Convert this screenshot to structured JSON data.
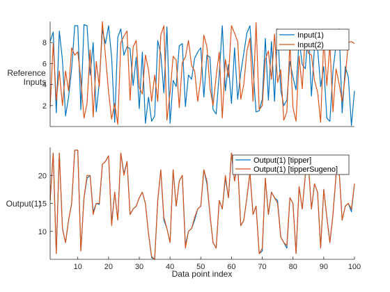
{
  "chart_data": [
    {
      "type": "line",
      "ylabel": [
        "Reference",
        "Inputs"
      ],
      "xlim": [
        1,
        100
      ],
      "ylim": [
        0,
        10
      ],
      "yticks": [
        2,
        4,
        6,
        8
      ],
      "xticks": [],
      "grid": false,
      "legend_position": "top-right",
      "x": [
        1,
        2,
        3,
        4,
        5,
        6,
        7,
        8,
        9,
        10,
        11,
        12,
        13,
        14,
        15,
        16,
        17,
        18,
        19,
        20,
        21,
        22,
        23,
        24,
        25,
        26,
        27,
        28,
        29,
        30,
        31,
        32,
        33,
        34,
        35,
        36,
        37,
        38,
        39,
        40,
        41,
        42,
        43,
        44,
        45,
        46,
        47,
        48,
        49,
        50,
        51,
        52,
        53,
        54,
        55,
        56,
        57,
        58,
        59,
        60,
        61,
        62,
        63,
        64,
        65,
        66,
        67,
        68,
        69,
        70,
        71,
        72,
        73,
        74,
        75,
        76,
        77,
        78,
        79,
        80,
        81,
        82,
        83,
        84,
        85,
        86,
        87,
        88,
        89,
        90,
        91,
        92,
        93,
        94,
        95,
        96,
        97,
        98,
        99,
        100
      ],
      "series": [
        {
          "name": "Input(1)",
          "color": "#0072BD",
          "values": [
            8.1,
            9.0,
            1.3,
            9.1,
            6.3,
            1.0,
            2.8,
            5.5,
            9.6,
            9.6,
            1.6,
            9.7,
            9.6,
            4.9,
            8.0,
            1.4,
            4.2,
            9.2,
            7.9,
            9.6,
            6.6,
            0.4,
            8.5,
            9.3,
            6.8,
            7.6,
            7.4,
            3.9,
            6.6,
            1.7,
            7.1,
            0.3,
            2.8,
            0.5,
            1.0,
            8.2,
            6.9,
            3.2,
            9.5,
            0.3,
            4.4,
            3.8,
            7.7,
            7.9,
            1.9,
            4.9,
            4.5,
            6.5,
            7.1,
            7.5,
            2.8,
            6.8,
            6.6,
            1.6,
            1.2,
            5.0,
            9.6,
            3.4,
            5.9,
            2.2,
            7.5,
            2.6,
            5.1,
            7.0,
            8.9,
            9.6,
            5.5,
            1.4,
            1.5,
            2.6,
            8.4,
            2.5,
            8.1,
            2.4,
            9.3,
            3.5,
            2.0,
            2.5,
            6.2,
            4.7,
            3.5,
            8.3,
            5.9,
            5.5,
            9.2,
            2.9,
            7.6,
            7.5,
            3.8,
            5.7,
            0.8,
            0.5,
            5.3,
            7.8,
            9.3,
            1.3,
            5.7,
            4.7,
            0.1,
            3.4
          ]
        },
        {
          "name": "Input(2)",
          "color": "#D95319",
          "values": [
            1.8,
            7.9,
            2.5,
            5.3,
            2.0,
            5.3,
            3.4,
            7.5,
            6.8,
            7.1,
            4.5,
            0.8,
            2.2,
            7.3,
            0.9,
            6.2,
            3.8,
            10.0,
            6.7,
            3.3,
            0.7,
            2.2,
            0.2,
            8.0,
            8.6,
            9.1,
            2.5,
            7.6,
            8.2,
            3.7,
            3.1,
            6.8,
            5.4,
            2.4,
            4.9,
            2.4,
            8.7,
            9.6,
            0.6,
            3.2,
            6.7,
            6.3,
            1.8,
            6.1,
            6.6,
            8.2,
            5.8,
            5.3,
            2.4,
            4.5,
            8.7,
            7.6,
            3.7,
            2.0,
            4.8,
            7.1,
            0.8,
            6.4,
            4.7,
            9.6,
            8.9,
            8.1,
            2.6,
            4.0,
            7.2,
            8.4,
            2.4,
            9.9,
            1.6,
            2.0,
            6.4,
            7.2,
            4.5,
            8.8,
            4.2,
            5.4,
            0.6,
            1.4,
            7.9,
            1.8,
            0.5,
            6.7,
            3.6,
            9.0,
            7.0,
            6.8,
            4.4,
            3.3,
            0.4,
            8.3,
            3.9,
            7.8,
            1.4,
            5.5,
            4.1,
            2.4,
            4.8,
            8.0,
            8.1,
            7.9
          ]
        }
      ]
    },
    {
      "type": "line",
      "xlabel": "Data point index",
      "ylabel": "Output(1)",
      "xlim": [
        1,
        100
      ],
      "ylim": [
        5,
        25
      ],
      "yticks": [
        10,
        15,
        20
      ],
      "xticks": [
        10,
        20,
        30,
        40,
        50,
        60,
        70,
        80,
        90,
        100
      ],
      "grid": false,
      "legend_position": "top-right",
      "x": [
        1,
        2,
        3,
        4,
        5,
        6,
        7,
        8,
        9,
        10,
        11,
        12,
        13,
        14,
        15,
        16,
        17,
        18,
        19,
        20,
        21,
        22,
        23,
        24,
        25,
        26,
        27,
        28,
        29,
        30,
        31,
        32,
        33,
        34,
        35,
        36,
        37,
        38,
        39,
        40,
        41,
        42,
        43,
        44,
        45,
        46,
        47,
        48,
        49,
        50,
        51,
        52,
        53,
        54,
        55,
        56,
        57,
        58,
        59,
        60,
        61,
        62,
        63,
        64,
        65,
        66,
        67,
        68,
        69,
        70,
        71,
        72,
        73,
        74,
        75,
        76,
        77,
        78,
        79,
        80,
        81,
        82,
        83,
        84,
        85,
        86,
        87,
        88,
        89,
        90,
        91,
        92,
        93,
        94,
        95,
        96,
        97,
        98,
        99,
        100
      ],
      "series": [
        {
          "name": "Output(1) [tipper]",
          "color": "#0072BD",
          "values": [
            15.5,
            24.0,
            6.0,
            24.0,
            10.5,
            8.0,
            12.0,
            15.0,
            24.5,
            24.5,
            6.5,
            16.0,
            19.5,
            20.0,
            13.5,
            15.0,
            14.8,
            22.0,
            22.5,
            23.5,
            11.5,
            17.0,
            12.0,
            24.0,
            20.3,
            22.5,
            13.0,
            14.0,
            14.5,
            16.0,
            17.0,
            15.0,
            9.5,
            5.3,
            5.0,
            15.5,
            21.0,
            12.0,
            10.5,
            8.0,
            21.0,
            14.5,
            19.0,
            20.0,
            7.5,
            10.0,
            10.5,
            12.0,
            14.0,
            14.5,
            21.0,
            18.5,
            13.0,
            8.0,
            7.0,
            15.5,
            14.0,
            19.5,
            16.0,
            24.0,
            19.0,
            22.0,
            11.0,
            12.0,
            16.0,
            20.5,
            13.0,
            14.5,
            6.0,
            6.5,
            19.5,
            13.0,
            17.0,
            16.0,
            15.5,
            9.0,
            8.0,
            7.0,
            16.0,
            15.0,
            6.0,
            18.0,
            14.0,
            20.0,
            22.0,
            14.0,
            18.5,
            17.0,
            7.0,
            17.5,
            12.5,
            8.0,
            13.0,
            20.0,
            21.0,
            12.0,
            14.5,
            15.0,
            13.5,
            18.5
          ]
        },
        {
          "name": "Output(1) [tipperSugeno]",
          "color": "#D95319",
          "values": [
            15.5,
            24.0,
            6.0,
            24.0,
            10.5,
            8.0,
            12.0,
            15.0,
            24.5,
            24.5,
            6.5,
            16.0,
            20.0,
            20.0,
            13.0,
            15.0,
            15.0,
            22.0,
            22.5,
            23.5,
            11.0,
            17.0,
            12.0,
            24.0,
            20.0,
            22.5,
            13.0,
            14.0,
            14.5,
            16.0,
            17.0,
            15.0,
            9.5,
            5.5,
            5.0,
            15.5,
            21.0,
            12.5,
            10.5,
            8.0,
            21.0,
            14.5,
            19.0,
            20.0,
            7.0,
            10.0,
            10.5,
            12.5,
            14.0,
            14.5,
            21.0,
            19.0,
            13.0,
            8.0,
            7.0,
            15.5,
            14.0,
            20.0,
            16.0,
            24.0,
            19.0,
            22.0,
            11.0,
            12.0,
            16.0,
            20.5,
            13.0,
            14.5,
            6.0,
            7.0,
            19.5,
            13.0,
            17.0,
            16.0,
            15.0,
            9.0,
            8.0,
            7.5,
            16.0,
            15.0,
            6.0,
            18.0,
            14.0,
            20.0,
            22.0,
            14.0,
            18.5,
            17.0,
            7.0,
            17.5,
            12.5,
            8.0,
            13.0,
            20.0,
            21.0,
            12.0,
            14.5,
            15.0,
            14.0,
            18.5
          ]
        }
      ]
    }
  ]
}
